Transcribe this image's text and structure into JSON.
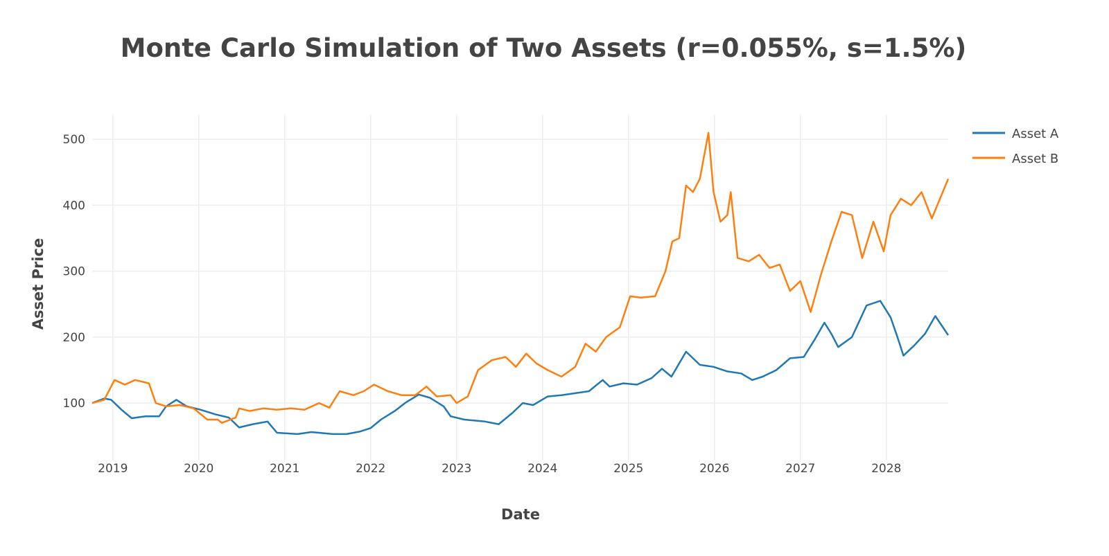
{
  "chart_data": {
    "type": "line",
    "title": "Monte Carlo Simulation of Two Assets (r=0.055%, s=1.5%)",
    "xlabel": "Date",
    "ylabel": "Asset Price",
    "xlim": [
      2018.76,
      2028.72
    ],
    "ylim": [
      13,
      538
    ],
    "grid": true,
    "legend_position": "top-right",
    "x_ticks": [
      2019,
      2020,
      2021,
      2022,
      2023,
      2024,
      2025,
      2026,
      2027,
      2028
    ],
    "x_tick_labels": [
      "2019",
      "2020",
      "2021",
      "2022",
      "2023",
      "2024",
      "2025",
      "2026",
      "2027",
      "2028"
    ],
    "y_ticks": [
      100,
      200,
      300,
      400,
      500
    ],
    "y_tick_labels": [
      "100",
      "200",
      "300",
      "400",
      "500"
    ],
    "series": [
      {
        "name": "Asset A",
        "color": "#1f77b4",
        "points": [
          [
            2018.76,
            100
          ],
          [
            2018.9,
            107
          ],
          [
            2018.98,
            105
          ],
          [
            2019.1,
            90
          ],
          [
            2019.22,
            77
          ],
          [
            2019.38,
            80
          ],
          [
            2019.54,
            80
          ],
          [
            2019.62,
            95
          ],
          [
            2019.74,
            105
          ],
          [
            2019.86,
            95
          ],
          [
            2020.02,
            90
          ],
          [
            2020.19,
            83
          ],
          [
            2020.35,
            78
          ],
          [
            2020.47,
            63
          ],
          [
            2020.63,
            68
          ],
          [
            2020.8,
            72
          ],
          [
            2020.91,
            55
          ],
          [
            2021.15,
            53
          ],
          [
            2021.31,
            56
          ],
          [
            2021.56,
            53
          ],
          [
            2021.72,
            53
          ],
          [
            2021.88,
            57
          ],
          [
            2022.0,
            62
          ],
          [
            2022.12,
            75
          ],
          [
            2022.28,
            88
          ],
          [
            2022.4,
            100
          ],
          [
            2022.56,
            113
          ],
          [
            2022.69,
            108
          ],
          [
            2022.85,
            95
          ],
          [
            2022.93,
            80
          ],
          [
            2023.09,
            75
          ],
          [
            2023.33,
            72
          ],
          [
            2023.49,
            68
          ],
          [
            2023.65,
            85
          ],
          [
            2023.77,
            100
          ],
          [
            2023.89,
            97
          ],
          [
            2024.06,
            110
          ],
          [
            2024.22,
            112
          ],
          [
            2024.38,
            115
          ],
          [
            2024.54,
            118
          ],
          [
            2024.7,
            135
          ],
          [
            2024.78,
            125
          ],
          [
            2024.94,
            130
          ],
          [
            2025.1,
            128
          ],
          [
            2025.27,
            138
          ],
          [
            2025.39,
            152
          ],
          [
            2025.5,
            140
          ],
          [
            2025.67,
            178
          ],
          [
            2025.83,
            158
          ],
          [
            2025.99,
            155
          ],
          [
            2026.15,
            148
          ],
          [
            2026.31,
            145
          ],
          [
            2026.44,
            135
          ],
          [
            2026.56,
            140
          ],
          [
            2026.72,
            150
          ],
          [
            2026.88,
            168
          ],
          [
            2027.04,
            170
          ],
          [
            2027.16,
            195
          ],
          [
            2027.28,
            222
          ],
          [
            2027.36,
            205
          ],
          [
            2027.44,
            185
          ],
          [
            2027.6,
            200
          ],
          [
            2027.77,
            248
          ],
          [
            2027.93,
            255
          ],
          [
            2028.05,
            230
          ],
          [
            2028.13,
            200
          ],
          [
            2028.2,
            172
          ],
          [
            2028.33,
            188
          ],
          [
            2028.45,
            205
          ],
          [
            2028.57,
            232
          ],
          [
            2028.72,
            203
          ]
        ]
      },
      {
        "name": "Asset B",
        "color": "#ff7f0e",
        "points": [
          [
            2018.76,
            100
          ],
          [
            2018.9,
            105
          ],
          [
            2019.02,
            135
          ],
          [
            2019.14,
            128
          ],
          [
            2019.26,
            135
          ],
          [
            2019.42,
            130
          ],
          [
            2019.5,
            100
          ],
          [
            2019.62,
            95
          ],
          [
            2019.78,
            97
          ],
          [
            2019.94,
            92
          ],
          [
            2020.1,
            75
          ],
          [
            2020.22,
            75
          ],
          [
            2020.27,
            70
          ],
          [
            2020.43,
            78
          ],
          [
            2020.47,
            92
          ],
          [
            2020.59,
            88
          ],
          [
            2020.75,
            92
          ],
          [
            2020.91,
            90
          ],
          [
            2021.07,
            92
          ],
          [
            2021.23,
            90
          ],
          [
            2021.4,
            100
          ],
          [
            2021.52,
            93
          ],
          [
            2021.64,
            118
          ],
          [
            2021.8,
            112
          ],
          [
            2021.92,
            118
          ],
          [
            2022.04,
            128
          ],
          [
            2022.2,
            118
          ],
          [
            2022.36,
            112
          ],
          [
            2022.52,
            112
          ],
          [
            2022.65,
            125
          ],
          [
            2022.77,
            110
          ],
          [
            2022.93,
            112
          ],
          [
            2023.0,
            100
          ],
          [
            2023.13,
            110
          ],
          [
            2023.25,
            150
          ],
          [
            2023.41,
            165
          ],
          [
            2023.57,
            170
          ],
          [
            2023.69,
            155
          ],
          [
            2023.81,
            175
          ],
          [
            2023.93,
            160
          ],
          [
            2024.06,
            150
          ],
          [
            2024.22,
            140
          ],
          [
            2024.38,
            155
          ],
          [
            2024.5,
            190
          ],
          [
            2024.62,
            178
          ],
          [
            2024.74,
            200
          ],
          [
            2024.9,
            215
          ],
          [
            2025.02,
            262
          ],
          [
            2025.14,
            260
          ],
          [
            2025.31,
            262
          ],
          [
            2025.43,
            300
          ],
          [
            2025.51,
            345
          ],
          [
            2025.59,
            350
          ],
          [
            2025.67,
            430
          ],
          [
            2025.75,
            420
          ],
          [
            2025.83,
            440
          ],
          [
            2025.93,
            510
          ],
          [
            2025.99,
            420
          ],
          [
            2026.07,
            375
          ],
          [
            2026.15,
            385
          ],
          [
            2026.19,
            420
          ],
          [
            2026.27,
            320
          ],
          [
            2026.4,
            315
          ],
          [
            2026.52,
            325
          ],
          [
            2026.64,
            305
          ],
          [
            2026.76,
            310
          ],
          [
            2026.88,
            270
          ],
          [
            2027.0,
            285
          ],
          [
            2027.12,
            238
          ],
          [
            2027.24,
            295
          ],
          [
            2027.36,
            345
          ],
          [
            2027.48,
            390
          ],
          [
            2027.6,
            385
          ],
          [
            2027.72,
            320
          ],
          [
            2027.85,
            375
          ],
          [
            2027.97,
            330
          ],
          [
            2028.05,
            385
          ],
          [
            2028.17,
            410
          ],
          [
            2028.29,
            400
          ],
          [
            2028.41,
            420
          ],
          [
            2028.53,
            380
          ],
          [
            2028.72,
            440
          ]
        ]
      }
    ]
  }
}
